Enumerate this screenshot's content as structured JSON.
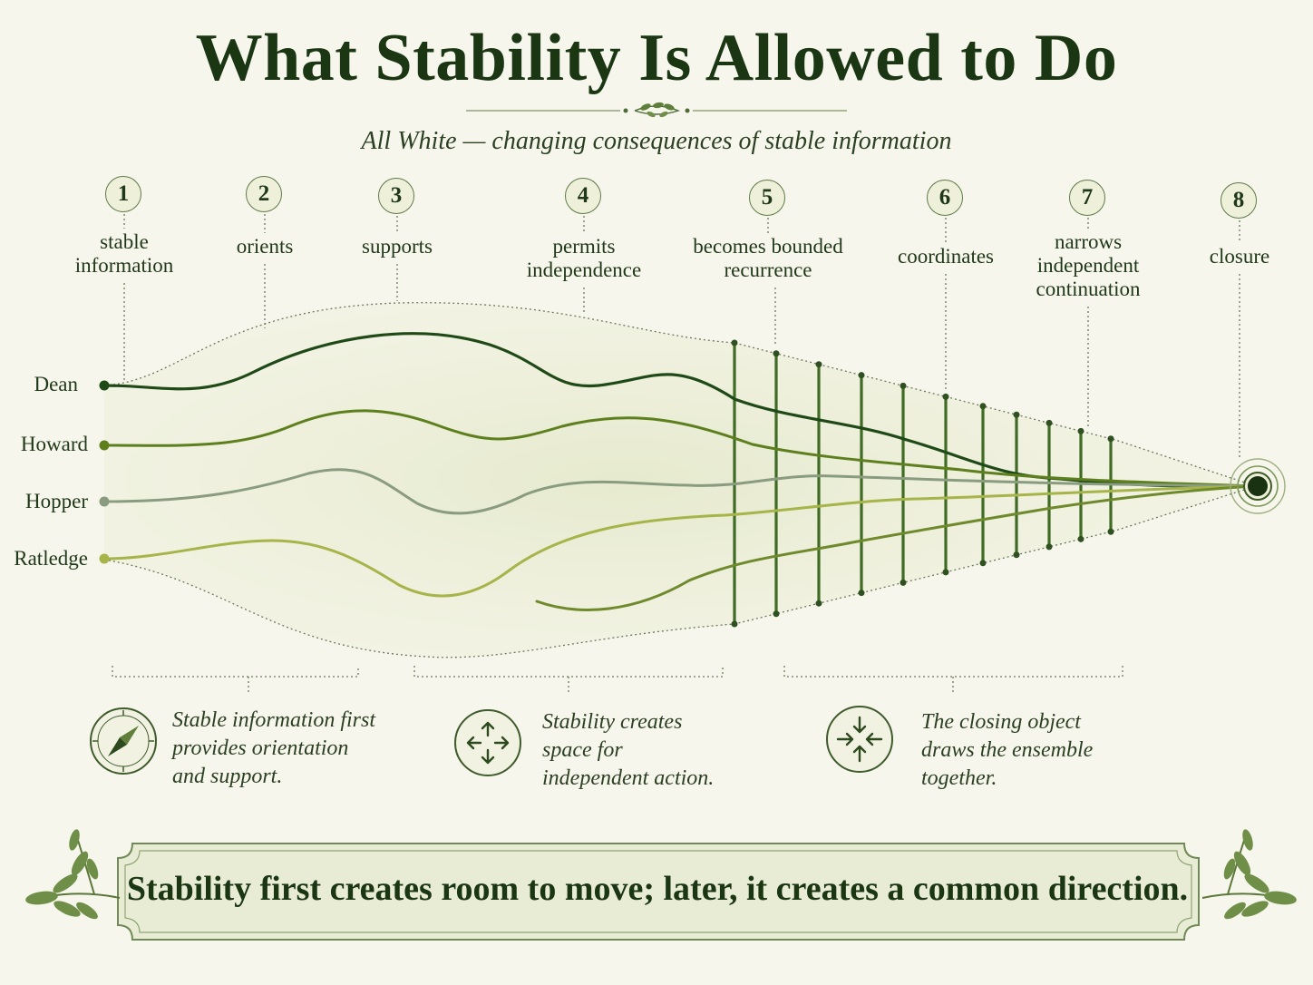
{
  "title": "What Stability Is Allowed to Do",
  "subtitle": "All White — changing consequences of stable information",
  "stages": [
    {
      "num": "1",
      "label": "stable information"
    },
    {
      "num": "2",
      "label": "orients"
    },
    {
      "num": "3",
      "label": "supports"
    },
    {
      "num": "4",
      "label": "permits independence"
    },
    {
      "num": "5",
      "label": "becomes bounded recurrence"
    },
    {
      "num": "6",
      "label": "coordinates"
    },
    {
      "num": "7",
      "label": "narrows independent continuation"
    },
    {
      "num": "8",
      "label": "closure"
    }
  ],
  "actors": [
    {
      "name": "Dean",
      "color": "#1f4a18"
    },
    {
      "name": "Howard",
      "color": "#5e7f1e"
    },
    {
      "name": "Hopper",
      "color": "#8a9c80"
    },
    {
      "name": "Ratledge",
      "color": "#a6b44a"
    }
  ],
  "notes": [
    {
      "icon": "compass-icon",
      "text": "Stable information first provides orientation and support."
    },
    {
      "icon": "arrows-outward-icon",
      "text": "Stability creates space for independent action."
    },
    {
      "icon": "arrows-inward-icon",
      "text": "The closing object draws the ensemble together."
    }
  ],
  "conclusion": "Stability first creates room to move; later, it creates a common direction.",
  "colors": {
    "dark_green": "#1a3612",
    "mid_green": "#5e7f1e",
    "background": "#f7f6ec"
  }
}
